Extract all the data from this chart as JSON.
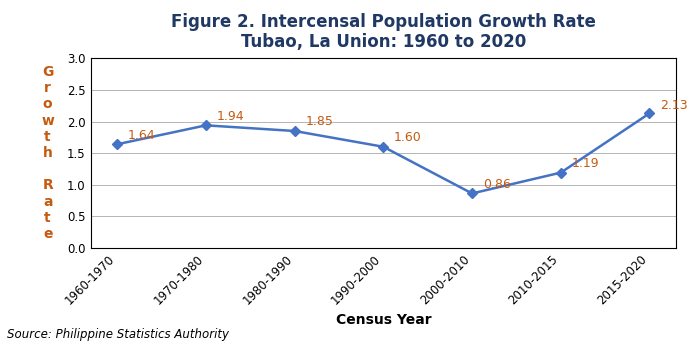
{
  "title_line1": "Figure 2. Intercensal Population Growth Rate",
  "title_line2": "Tubao, La Union: 1960 to 2020",
  "xlabel": "Census Year",
  "ylabel_chars": [
    "G",
    "r",
    "o",
    "w",
    "t",
    "h",
    "",
    "R",
    "a",
    "t",
    "e"
  ],
  "source": "Source: Philippine Statistics Authority",
  "categories": [
    "1960-1970",
    "1970-1980",
    "1980-1990",
    "1990-2000",
    "2000-2010",
    "2010-2015",
    "2015-2020"
  ],
  "values": [
    1.64,
    1.94,
    1.85,
    1.6,
    0.86,
    1.19,
    2.13
  ],
  "ylim": [
    0.0,
    3.2
  ],
  "ylim_display": [
    0.0,
    3.0
  ],
  "yticks": [
    0.0,
    0.5,
    1.0,
    1.5,
    2.0,
    2.5,
    3.0
  ],
  "line_color": "#4472C4",
  "marker": "D",
  "marker_size": 5,
  "line_width": 1.8,
  "title_color": "#1F3864",
  "ylabel_color": "#C55A11",
  "xlabel_color": "#000000",
  "label_color": "#C55A11",
  "source_style": "italic",
  "source_fontsize": 8.5,
  "title_fontsize": 12,
  "axis_label_fontsize": 10,
  "tick_label_fontsize": 8.5,
  "data_label_fontsize": 9,
  "bg_color": "#FFFFFF",
  "grid_color": "#AAAAAA",
  "box_visible": true
}
